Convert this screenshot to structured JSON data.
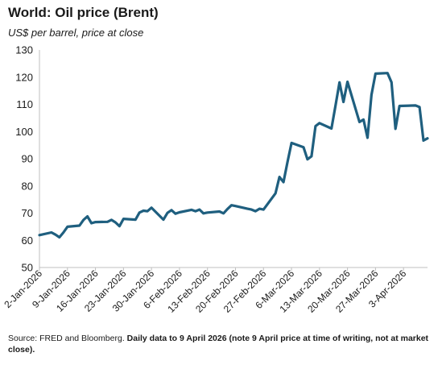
{
  "header": {
    "title": "World: Oil price (Brent)",
    "subtitle": "US$ per barrel, price at close"
  },
  "footer": {
    "source_prefix": "Source: FRED and Bloomberg. ",
    "source_note": "Daily data to 9 April 2026 (note 9 April price at time of writing, not at  market close)."
  },
  "colors": {
    "line": "#1f5f7f",
    "axis": "#bfbfbf",
    "text": "#1a1a1a"
  },
  "chart_data": {
    "type": "line",
    "title": "World: Oil price (Brent)",
    "ylabel": "US$ per barrel, price at close",
    "xlabel": "",
    "ylim": [
      50,
      130
    ],
    "yticks": [
      50,
      60,
      70,
      80,
      90,
      100,
      110,
      120,
      130
    ],
    "xlim": [
      "2026-01-02",
      "2026-04-09"
    ],
    "xtick_labels": [
      "2-Jan-2026",
      "9-Jan-2026",
      "16-Jan-2026",
      "23-Jan-2026",
      "30-Jan-2026",
      "6-Feb-2026",
      "13-Feb-2026",
      "20-Feb-2026",
      "27-Feb-2026",
      "6-Mar-2026",
      "13-Mar-2026",
      "20-Mar-2026",
      "27-Mar-2026",
      "3-Apr-2026"
    ],
    "xtick_dates": [
      "2026-01-02",
      "2026-01-09",
      "2026-01-16",
      "2026-01-23",
      "2026-01-30",
      "2026-02-06",
      "2026-02-13",
      "2026-02-20",
      "2026-02-27",
      "2026-03-06",
      "2026-03-13",
      "2026-03-20",
      "2026-03-27",
      "2026-04-03"
    ],
    "grid": false,
    "series": [
      {
        "values": [
          [
            "2026-01-02",
            61.9
          ],
          [
            "2026-01-05",
            62.9
          ],
          [
            "2026-01-06",
            62.1
          ],
          [
            "2026-01-07",
            61.1
          ],
          [
            "2026-01-08",
            62.9
          ],
          [
            "2026-01-09",
            65.0
          ],
          [
            "2026-01-12",
            65.4
          ],
          [
            "2026-01-13",
            67.5
          ],
          [
            "2026-01-14",
            68.8
          ],
          [
            "2026-01-15",
            66.3
          ],
          [
            "2026-01-16",
            66.7
          ],
          [
            "2026-01-19",
            66.8
          ],
          [
            "2026-01-20",
            67.5
          ],
          [
            "2026-01-21",
            66.6
          ],
          [
            "2026-01-22",
            65.2
          ],
          [
            "2026-01-23",
            67.9
          ],
          [
            "2026-01-26",
            67.6
          ],
          [
            "2026-01-27",
            70.2
          ],
          [
            "2026-01-28",
            70.9
          ],
          [
            "2026-01-29",
            70.7
          ],
          [
            "2026-01-30",
            72.0
          ],
          [
            "2026-02-02",
            67.6
          ],
          [
            "2026-02-03",
            70.1
          ],
          [
            "2026-02-04",
            71.1
          ],
          [
            "2026-02-05",
            69.8
          ],
          [
            "2026-02-06",
            70.3
          ],
          [
            "2026-02-09",
            71.2
          ],
          [
            "2026-02-10",
            70.7
          ],
          [
            "2026-02-11",
            71.3
          ],
          [
            "2026-02-12",
            69.9
          ],
          [
            "2026-02-13",
            70.2
          ],
          [
            "2026-02-16",
            70.6
          ],
          [
            "2026-02-17",
            69.9
          ],
          [
            "2026-02-18",
            71.5
          ],
          [
            "2026-02-19",
            72.9
          ],
          [
            "2026-02-20",
            72.6
          ],
          [
            "2026-02-23",
            71.6
          ],
          [
            "2026-02-24",
            71.3
          ],
          [
            "2026-02-25",
            70.7
          ],
          [
            "2026-02-26",
            71.6
          ],
          [
            "2026-02-27",
            71.3
          ],
          [
            "2026-03-02",
            77.3
          ],
          [
            "2026-03-03",
            83.3
          ],
          [
            "2026-03-04",
            81.4
          ],
          [
            "2026-03-05",
            88.8
          ],
          [
            "2026-03-06",
            95.8
          ],
          [
            "2026-03-09",
            94.2
          ],
          [
            "2026-03-10",
            89.8
          ],
          [
            "2026-03-11",
            90.9
          ],
          [
            "2026-03-12",
            102.0
          ],
          [
            "2026-03-13",
            103.1
          ],
          [
            "2026-03-16",
            101.1
          ],
          [
            "2026-03-17",
            109.5
          ],
          [
            "2026-03-18",
            118.1
          ],
          [
            "2026-03-19",
            110.9
          ],
          [
            "2026-03-20",
            118.3
          ],
          [
            "2026-03-23",
            103.5
          ],
          [
            "2026-03-24",
            104.4
          ],
          [
            "2026-03-25",
            97.7
          ],
          [
            "2026-03-26",
            113.5
          ],
          [
            "2026-03-27",
            121.3
          ],
          [
            "2026-03-30",
            121.5
          ],
          [
            "2026-03-31",
            118.1
          ],
          [
            "2026-04-01",
            101.0
          ],
          [
            "2026-04-02",
            109.4
          ],
          [
            "2026-04-06",
            109.6
          ],
          [
            "2026-04-07",
            109.0
          ],
          [
            "2026-04-08",
            96.7
          ],
          [
            "2026-04-09",
            97.5
          ]
        ]
      }
    ]
  }
}
